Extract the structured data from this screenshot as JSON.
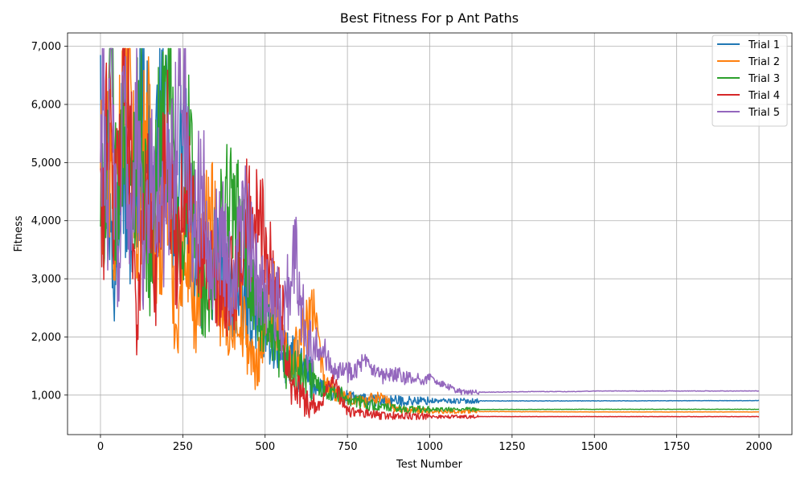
{
  "chart_data": {
    "type": "line",
    "title": "Best Fitness For p Ant Paths",
    "xlabel": "Test Number",
    "ylabel": "Fitness",
    "xlim": [
      -100,
      2100
    ],
    "ylim": [
      320,
      7230
    ],
    "xticks": [
      0,
      250,
      500,
      750,
      1000,
      1250,
      1500,
      1750,
      2000
    ],
    "xtick_labels": [
      "0",
      "250",
      "500",
      "750",
      "1000",
      "1250",
      "1500",
      "1750",
      "2000"
    ],
    "yticks": [
      1000,
      2000,
      3000,
      4000,
      5000,
      6000,
      7000
    ],
    "ytick_labels": [
      "1,000",
      "2,000",
      "3,000",
      "4,000",
      "5,000",
      "6,000",
      "7,000"
    ],
    "grid": true,
    "legend_position": "top-right",
    "series": [
      {
        "name": "Trial 1",
        "color": "#1f77b4",
        "x": [
          0,
          10,
          25,
          40,
          60,
          80,
          100,
          130,
          160,
          190,
          220,
          250,
          280,
          310,
          350,
          400,
          450,
          500,
          550,
          600,
          650,
          700,
          750,
          800,
          850,
          900,
          1000,
          1500,
          2000
        ],
        "y": [
          6850,
          5200,
          4600,
          2600,
          5700,
          4000,
          3800,
          6550,
          4200,
          6150,
          3500,
          5500,
          3600,
          2900,
          3300,
          2700,
          2500,
          2300,
          1700,
          1500,
          1200,
          1050,
          950,
          920,
          910,
          900,
          900,
          900,
          905
        ]
      },
      {
        "name": "Trial 2",
        "color": "#ff7f0e",
        "x": [
          0,
          10,
          25,
          45,
          70,
          90,
          110,
          140,
          170,
          200,
          230,
          260,
          290,
          330,
          370,
          420,
          470,
          520,
          570,
          620,
          640,
          680,
          730,
          800,
          850,
          900,
          1000,
          1500,
          2000
        ],
        "y": [
          4900,
          4200,
          5300,
          3500,
          6950,
          6350,
          3300,
          5800,
          3100,
          4600,
          2050,
          3900,
          2200,
          5000,
          2100,
          2500,
          1400,
          2800,
          1600,
          2000,
          2700,
          1200,
          950,
          900,
          980,
          750,
          720,
          710,
          710
        ]
      },
      {
        "name": "Trial 3",
        "color": "#2ca02c",
        "x": [
          0,
          15,
          30,
          50,
          70,
          90,
          120,
          150,
          180,
          210,
          240,
          270,
          300,
          340,
          380,
          430,
          480,
          530,
          580,
          630,
          680,
          730,
          800,
          850,
          900,
          1000,
          1500,
          2000
        ],
        "y": [
          3900,
          4600,
          6750,
          3800,
          6200,
          4200,
          5900,
          3000,
          5500,
          6100,
          3200,
          5250,
          2800,
          2600,
          4500,
          3800,
          2300,
          1800,
          1400,
          1300,
          1100,
          1000,
          850,
          800,
          760,
          750,
          755,
          755
        ]
      },
      {
        "name": "Trial 4",
        "color": "#d62728",
        "x": [
          0,
          5,
          20,
          40,
          60,
          75,
          95,
          110,
          140,
          170,
          200,
          230,
          260,
          290,
          330,
          370,
          410,
          450,
          500,
          540,
          580,
          620,
          660,
          700,
          750,
          800,
          850,
          900,
          1000,
          1500,
          2000
        ],
        "y": [
          4900,
          3250,
          6300,
          4100,
          5600,
          6920,
          4700,
          2270,
          4500,
          3000,
          5800,
          3300,
          4900,
          3500,
          3200,
          2600,
          3000,
          4100,
          3800,
          2800,
          1200,
          900,
          750,
          1300,
          720,
          680,
          650,
          640,
          630,
          630,
          630
        ]
      },
      {
        "name": "Trial 5",
        "color": "#9467bd",
        "x": [
          0,
          8,
          20,
          35,
          55,
          70,
          90,
          110,
          130,
          160,
          190,
          220,
          250,
          280,
          310,
          340,
          370,
          400,
          430,
          470,
          510,
          550,
          590,
          630,
          670,
          710,
          750,
          800,
          850,
          900,
          950,
          1000,
          1050,
          1100,
          1200,
          1300,
          1440,
          1500,
          2000
        ],
        "y": [
          5000,
          6900,
          4200,
          6300,
          2600,
          6100,
          4000,
          5600,
          3400,
          5200,
          3800,
          5300,
          6350,
          3800,
          4600,
          3400,
          3900,
          2700,
          4200,
          3000,
          2900,
          2300,
          3350,
          2000,
          1800,
          1500,
          1400,
          1550,
          1300,
          1350,
          1250,
          1300,
          1150,
          1050,
          1050,
          1060,
          1060,
          1070,
          1070
        ]
      }
    ]
  }
}
